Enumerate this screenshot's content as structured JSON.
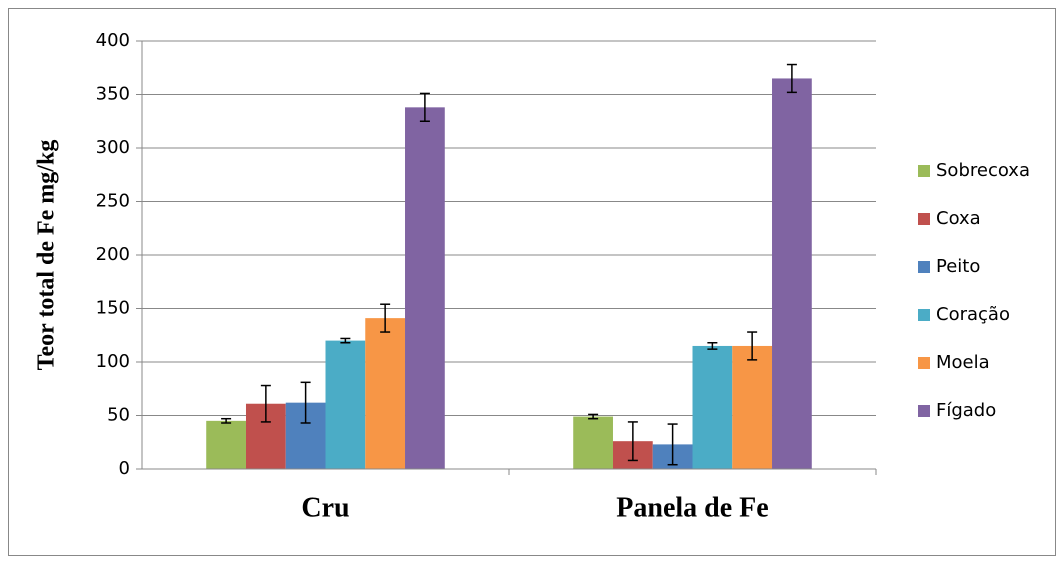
{
  "chart_data": {
    "type": "bar",
    "y_label": "Teor total de Fe mg/kg",
    "categories": [
      "Cru",
      "Panela de Fe"
    ],
    "series": [
      {
        "name": "Sobrecoxa",
        "color": "#9bbb59",
        "values": [
          45,
          49
        ],
        "errors": [
          2,
          2
        ]
      },
      {
        "name": "Coxa",
        "color": "#c0504d",
        "values": [
          61,
          26
        ],
        "errors": [
          17,
          18
        ]
      },
      {
        "name": "Peito",
        "color": "#4f81bd",
        "values": [
          62,
          23
        ],
        "errors": [
          19,
          19
        ]
      },
      {
        "name": "Coração",
        "color": "#4bacc6",
        "values": [
          120,
          115
        ],
        "errors": [
          2,
          3
        ]
      },
      {
        "name": "Moela",
        "color": "#f79646",
        "values": [
          141,
          115
        ],
        "errors": [
          13,
          13
        ]
      },
      {
        "name": "Fígado",
        "color": "#8064a2",
        "values": [
          338,
          365
        ],
        "errors": [
          13,
          13
        ]
      }
    ],
    "ylim": [
      0,
      400
    ],
    "yticks": [
      0,
      50,
      100,
      150,
      200,
      250,
      300,
      350,
      400
    ],
    "grid": true,
    "legend": "right"
  }
}
